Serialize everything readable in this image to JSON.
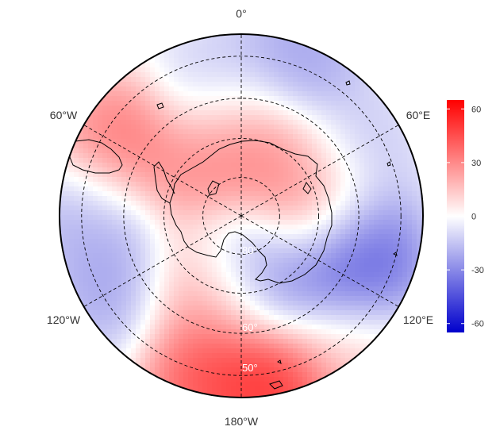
{
  "map": {
    "projection": "south-polar-stereographic",
    "longitude_labels": {
      "top": "0°",
      "upper_left": "60°W",
      "upper_right": "60°E",
      "lower_left": "120°W",
      "lower_right": "120°E",
      "bottom": "180°W"
    },
    "latitude_labels": [
      "80°",
      "60°",
      "50°"
    ],
    "graticule": {
      "latitudes": [
        80,
        70,
        60,
        50
      ],
      "meridians_deg": [
        0,
        60,
        120,
        180,
        240,
        300
      ],
      "style": "dashed"
    },
    "field": {
      "description_colorscale": "diverging blue-white-red",
      "anomalies": [
        {
          "lon": 120,
          "lat": -58,
          "value": -55
        },
        {
          "lon": 100,
          "lat": -62,
          "value": -45
        },
        {
          "lon": 150,
          "lat": -72,
          "value": -35
        },
        {
          "lon": -120,
          "lat": -55,
          "value": -30
        },
        {
          "lon": -90,
          "lat": -52,
          "value": -25
        },
        {
          "lon": 20,
          "lat": -50,
          "value": -30
        },
        {
          "lon": -10,
          "lat": -58,
          "value": -20
        },
        {
          "lon": 60,
          "lat": -58,
          "value": -20
        },
        {
          "lon": 80,
          "lat": -72,
          "value": 50
        },
        {
          "lon": -60,
          "lat": -55,
          "value": 45
        },
        {
          "lon": 170,
          "lat": -48,
          "value": 65
        },
        {
          "lon": -170,
          "lat": -50,
          "value": 55
        },
        {
          "lon": -160,
          "lat": -65,
          "value": 40
        },
        {
          "lon": 0,
          "lat": -70,
          "value": 40
        },
        {
          "lon": -40,
          "lat": -75,
          "value": 35
        },
        {
          "lon": 50,
          "lat": -75,
          "value": 30
        },
        {
          "lon": 140,
          "lat": -50,
          "value": 20
        },
        {
          "lon": -150,
          "lat": -75,
          "value": 25
        },
        {
          "lon": 175,
          "lat": -78,
          "value": -40
        }
      ]
    }
  },
  "colorbar": {
    "ticks": [
      "60",
      "30",
      "0",
      "-30",
      "-60"
    ],
    "range": [
      -65,
      65
    ],
    "colors": {
      "low": "#0000cc",
      "mid": "#ffffff",
      "high": "#ff0000"
    }
  }
}
